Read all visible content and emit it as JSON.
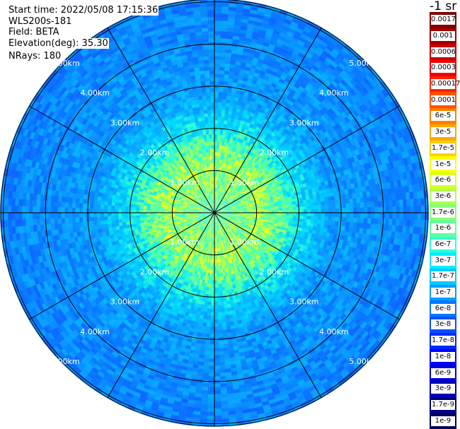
{
  "header": {
    "start_time": "Start time: 2022/05/08 17:15:36",
    "instrument": "WLS200s-181",
    "field": "Field: BETA",
    "elevation": "Elevation(deg): 35.30",
    "nrays": "NRays: 180"
  },
  "colorbar": {
    "units": "-1 sr",
    "labels": [
      "0.0017",
      "0.001",
      "0.0006",
      "0.0003",
      "0.00017",
      "0.0001",
      "6e-5",
      "3e-5",
      "1.7e-5",
      "1e-5",
      "6e-6",
      "3e-6",
      "1.7e-6",
      "1e-6",
      "6e-7",
      "3e-7",
      "1.7e-7",
      "1e-7",
      "6e-8",
      "3e-8",
      "1.7e-8",
      "1e-8",
      "6e-9",
      "3e-9",
      "1.7e-9",
      "1e-9"
    ],
    "colors": [
      "#800000",
      "#a00000",
      "#c80000",
      "#f00000",
      "#ff2000",
      "#ff5000",
      "#ff8000",
      "#ffa800",
      "#ffd000",
      "#ffff00",
      "#d8ff28",
      "#b0ff50",
      "#88ff78",
      "#60ffa0",
      "#30ffd0",
      "#00f0ff",
      "#00c8ff",
      "#00a0ff",
      "#0078ff",
      "#0050ff",
      "#0028ff",
      "#0000ff",
      "#0000d8",
      "#0000b0",
      "#000088",
      "#000060"
    ]
  },
  "range_rings": {
    "labels": [
      "1.00km",
      "2.00km",
      "3.00km",
      "4.00km",
      "5.00km"
    ],
    "label_quadrants": [
      "upper-left",
      "upper-right",
      "lower-left",
      "lower-right"
    ]
  },
  "radial_lines_deg": [
    0,
    30,
    60,
    90,
    120,
    150
  ],
  "map": {
    "max_range_km": 5.0,
    "field": "BETA"
  }
}
